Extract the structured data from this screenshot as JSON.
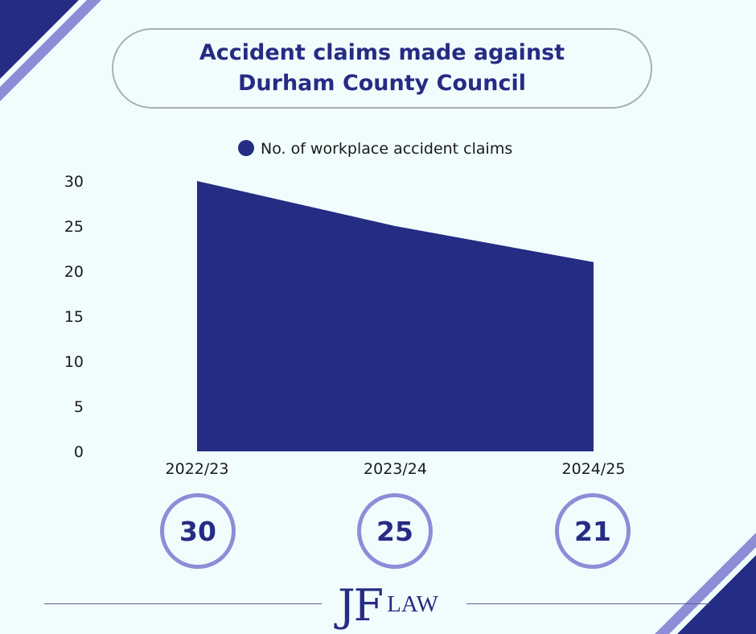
{
  "title_lines": [
    "Accident claims made against",
    "Durham County Council"
  ],
  "colors": {
    "accent": "#252c84",
    "circle_border": "#8b8ed7",
    "background": "#f1fdfd"
  },
  "chart_data": {
    "type": "area",
    "categories": [
      "2022/23",
      "2023/24",
      "2024/25"
    ],
    "series": [
      {
        "name": "No. of workplace accident claims",
        "values": [
          30,
          25,
          21
        ]
      }
    ],
    "ylim": [
      0,
      30
    ],
    "yticks": [
      0,
      5,
      10,
      15,
      20,
      25,
      30
    ],
    "legend_position": "top",
    "grid": false
  },
  "callouts": [
    "30",
    "25",
    "21"
  ],
  "logo": {
    "jf": "JF",
    "law": "LAW"
  }
}
